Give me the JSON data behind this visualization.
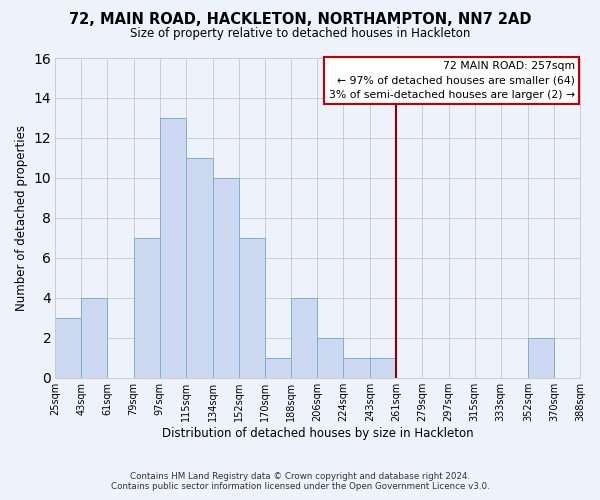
{
  "title": "72, MAIN ROAD, HACKLETON, NORTHAMPTON, NN7 2AD",
  "subtitle": "Size of property relative to detached houses in Hackleton",
  "xlabel": "Distribution of detached houses by size in Hackleton",
  "ylabel": "Number of detached properties",
  "bin_edges": [
    25,
    43,
    61,
    79,
    97,
    115,
    134,
    152,
    170,
    188,
    206,
    224,
    243,
    261,
    279,
    297,
    315,
    333,
    352,
    370,
    388
  ],
  "bin_labels": [
    "25sqm",
    "43sqm",
    "61sqm",
    "79sqm",
    "97sqm",
    "115sqm",
    "134sqm",
    "152sqm",
    "170sqm",
    "188sqm",
    "206sqm",
    "224sqm",
    "243sqm",
    "261sqm",
    "279sqm",
    "297sqm",
    "315sqm",
    "333sqm",
    "352sqm",
    "370sqm",
    "388sqm"
  ],
  "counts": [
    3,
    4,
    0,
    7,
    13,
    11,
    10,
    7,
    1,
    4,
    2,
    1,
    1,
    0,
    0,
    0,
    0,
    0,
    2,
    0
  ],
  "bar_color": "#ccd9f0",
  "bar_edge_color": "#7bafd4",
  "grid_color": "#cccccc",
  "bg_color": "#eef2fa",
  "vline_x": 261,
  "vline_color": "#8b0000",
  "annotation_title": "72 MAIN ROAD: 257sqm",
  "annotation_line1": "← 97% of detached houses are smaller (64)",
  "annotation_line2": "3% of semi-detached houses are larger (2) →",
  "annotation_box_edge": "#c00000",
  "annotation_box_bg": "white",
  "ylim": [
    0,
    16
  ],
  "yticks": [
    0,
    2,
    4,
    6,
    8,
    10,
    12,
    14,
    16
  ],
  "footer1": "Contains HM Land Registry data © Crown copyright and database right 2024.",
  "footer2": "Contains public sector information licensed under the Open Government Licence v3.0."
}
